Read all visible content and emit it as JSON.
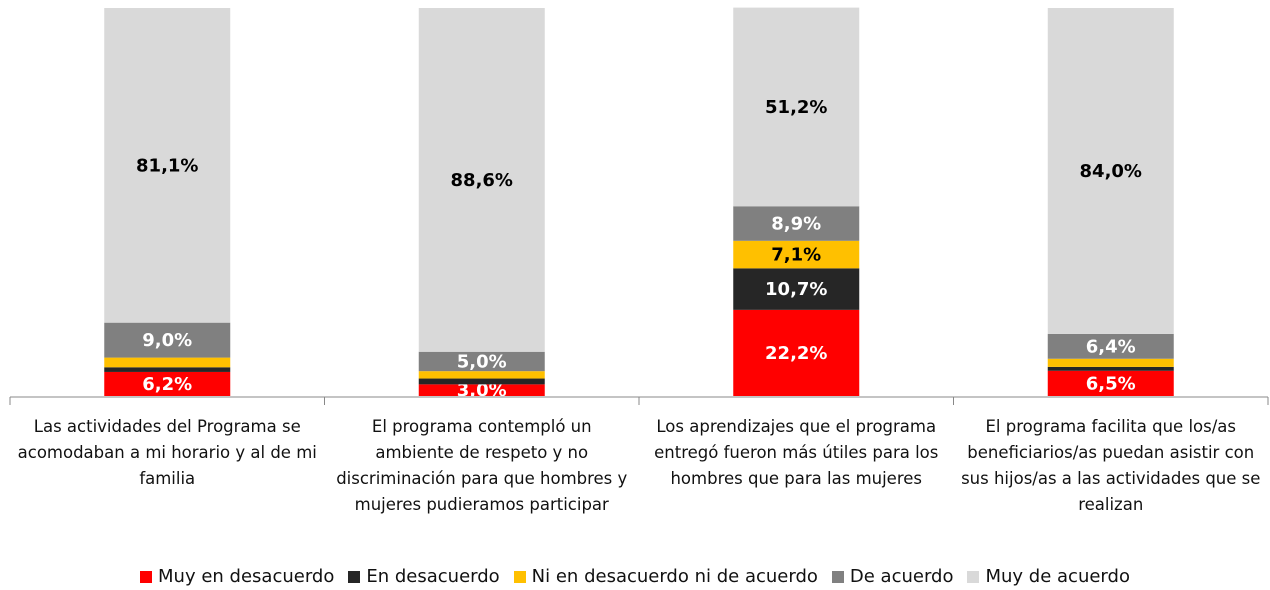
{
  "chart_data": {
    "type": "stacked_bar",
    "categories": [
      "Las actividades del Programa se acomodaban a mi horario y al de mi familia",
      "El programa contempló un ambiente de respeto y no discriminación para que hombres y mujeres pudieramos participar",
      "Los aprendizajes que el programa entregó fueron más útiles para los hombres que para las mujeres",
      "El programa facilita que los/as beneficiarios/as puedan asistir con sus hijos/as a las actividades que se realizan"
    ],
    "series": [
      {
        "name": "Muy en desacuerdo",
        "color": "#ff0000",
        "values": [
          6.2,
          3.0,
          22.2,
          6.5
        ],
        "value_labels": [
          "6,2%",
          "3,0%",
          "22,2%",
          "6,5%"
        ]
      },
      {
        "name": "En desacuerdo",
        "color": "#262626",
        "values": [
          1.2,
          1.5,
          10.7,
          1.0
        ],
        "value_labels": [
          null,
          null,
          "10,7%",
          null
        ]
      },
      {
        "name": "Ni en desacuerdo ni de acuerdo",
        "color": "#ffc000",
        "values": [
          2.5,
          1.9,
          7.1,
          2.1
        ],
        "value_labels": [
          null,
          null,
          "7,1%",
          null
        ]
      },
      {
        "name": "De acuerdo",
        "color": "#808080",
        "values": [
          9.0,
          5.0,
          8.9,
          6.4
        ],
        "value_labels": [
          "9,0%",
          "5,0%",
          "8,9%",
          "6,4%"
        ]
      },
      {
        "name": "Muy de acuerdo",
        "color": "#d9d9d9",
        "values": [
          81.1,
          88.6,
          51.2,
          84.0
        ],
        "value_labels": [
          "81,1%",
          "88,6%",
          "51,2%",
          "84,0%"
        ]
      }
    ],
    "ylim": [
      0,
      100
    ],
    "legend": "bottom"
  }
}
